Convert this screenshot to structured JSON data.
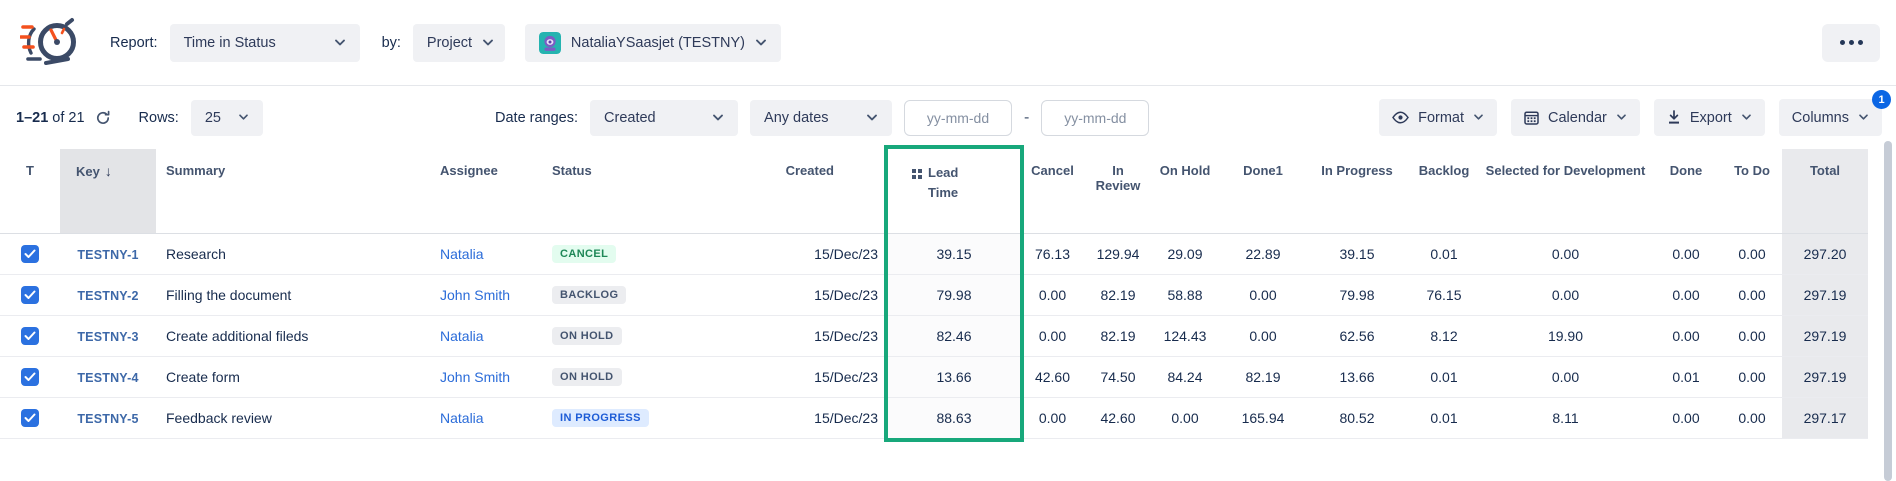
{
  "topbar": {
    "report_label": "Report:",
    "report_value": "Time in Status",
    "by_label": "by:",
    "by_value": "Project",
    "project_value": "NataliaYSaasjet (TESTNY)"
  },
  "toolbar": {
    "count_bold": "1–21",
    "count_rest": "of 21",
    "rows_label": "Rows:",
    "rows_value": "25",
    "date_ranges_label": "Date ranges:",
    "date_field_value": "Created",
    "date_preset_value": "Any dates",
    "date_from_placeholder": "yy-mm-dd",
    "date_separator": "-",
    "date_to_placeholder": "yy-mm-dd",
    "format_label": "Format",
    "calendar_label": "Calendar",
    "export_label": "Export",
    "columns_label": "Columns",
    "columns_badge": "1"
  },
  "table": {
    "columns": [
      {
        "id": "t",
        "label": "T"
      },
      {
        "id": "key",
        "label": "Key",
        "sort": "desc"
      },
      {
        "id": "summary",
        "label": "Summary"
      },
      {
        "id": "assignee",
        "label": "Assignee"
      },
      {
        "id": "status",
        "label": "Status"
      },
      {
        "id": "created",
        "label": "Created"
      },
      {
        "id": "leadtime",
        "label": "Lead Time",
        "highlighted": true
      },
      {
        "id": "cancel",
        "label": "Cancel"
      },
      {
        "id": "inreview",
        "label": "In Review"
      },
      {
        "id": "onhold",
        "label": "On Hold"
      },
      {
        "id": "done1",
        "label": "Done1"
      },
      {
        "id": "inprogress",
        "label": "In Progress"
      },
      {
        "id": "backlog",
        "label": "Backlog"
      },
      {
        "id": "sfd",
        "label": "Selected for Development"
      },
      {
        "id": "done",
        "label": "Done"
      },
      {
        "id": "todo",
        "label": "To Do"
      },
      {
        "id": "total",
        "label": "Total"
      }
    ],
    "rows": [
      {
        "checked": true,
        "key": "TESTNY-1",
        "summary": "Research",
        "assignee": "Natalia",
        "status": "CANCEL",
        "status_type": "success",
        "created": "15/Dec/23",
        "values": {
          "leadtime": "39.15",
          "cancel": "76.13",
          "inreview": "129.94",
          "onhold": "29.09",
          "done1": "22.89",
          "inprogress": "39.15",
          "backlog": "0.01",
          "sfd": "0.00",
          "done": "0.00",
          "todo": "0.00",
          "total": "297.20"
        }
      },
      {
        "checked": true,
        "key": "TESTNY-2",
        "summary": "Filling the document",
        "assignee": "John Smith",
        "status": "BACKLOG",
        "status_type": "neutral",
        "created": "15/Dec/23",
        "values": {
          "leadtime": "79.98",
          "cancel": "0.00",
          "inreview": "82.19",
          "onhold": "58.88",
          "done1": "0.00",
          "inprogress": "79.98",
          "backlog": "76.15",
          "sfd": "0.00",
          "done": "0.00",
          "todo": "0.00",
          "total": "297.19"
        }
      },
      {
        "checked": true,
        "key": "TESTNY-3",
        "summary": "Create additional fileds",
        "assignee": "Natalia",
        "status": "ON HOLD",
        "status_type": "neutral",
        "created": "15/Dec/23",
        "values": {
          "leadtime": "82.46",
          "cancel": "0.00",
          "inreview": "82.19",
          "onhold": "124.43",
          "done1": "0.00",
          "inprogress": "62.56",
          "backlog": "8.12",
          "sfd": "19.90",
          "done": "0.00",
          "todo": "0.00",
          "total": "297.19"
        }
      },
      {
        "checked": true,
        "key": "TESTNY-4",
        "summary": "Create form",
        "assignee": "John Smith",
        "status": "ON HOLD",
        "status_type": "neutral",
        "created": "15/Dec/23",
        "values": {
          "leadtime": "13.66",
          "cancel": "42.60",
          "inreview": "74.50",
          "onhold": "84.24",
          "done1": "82.19",
          "inprogress": "13.66",
          "backlog": "0.01",
          "sfd": "0.00",
          "done": "0.01",
          "todo": "0.00",
          "total": "297.19"
        }
      },
      {
        "checked": true,
        "key": "TESTNY-5",
        "summary": "Feedback review",
        "assignee": "Natalia",
        "status": "IN PROGRESS",
        "status_type": "info",
        "created": "15/Dec/23",
        "values": {
          "leadtime": "88.63",
          "cancel": "0.00",
          "inreview": "42.60",
          "onhold": "0.00",
          "done1": "165.94",
          "inprogress": "80.52",
          "backlog": "0.01",
          "sfd": "8.11",
          "done": "0.00",
          "todo": "0.00",
          "total": "297.17"
        }
      }
    ]
  },
  "colors": {
    "highlight_green": "#18A87B",
    "columns_badge_blue": "#0B66E4",
    "badge_success_bg": "#E3FCEF",
    "badge_success_text": "#1E8757",
    "badge_neutral_bg": "#ECEDF0",
    "badge_neutral_text": "#44546F",
    "badge_info_bg": "#DEEBFF",
    "badge_info_text": "#1D5CD6",
    "checkbox_blue": "#2B71E0"
  }
}
